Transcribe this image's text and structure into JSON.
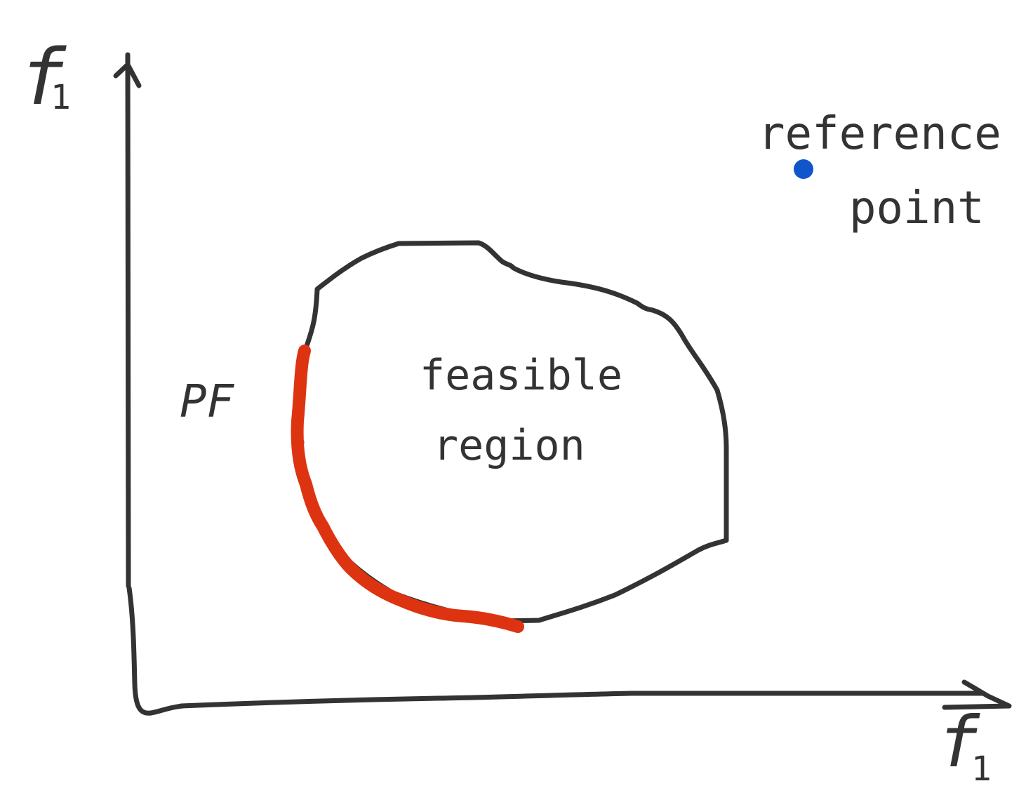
{
  "colors": {
    "ink": "#333333",
    "pareto_front": "#dd3311",
    "reference_point": "#1155cc",
    "background": "#ffffff"
  },
  "axes": {
    "y_label": "f",
    "y_label_subscript": "1",
    "x_label": "f",
    "x_label_subscript": "1"
  },
  "labels": {
    "pareto_front": "PF",
    "feasible_region_line1": "feasible",
    "feasible_region_line2": "region",
    "reference_point_line1": "reference",
    "reference_point_line2": "point"
  },
  "elements": [
    {
      "name": "y-axis",
      "kind": "arrow"
    },
    {
      "name": "x-axis",
      "kind": "arrow"
    },
    {
      "name": "feasible-region-boundary",
      "kind": "closed-curve"
    },
    {
      "name": "pareto-front-curve",
      "kind": "highlighted-curve"
    },
    {
      "name": "reference-point-marker",
      "kind": "dot"
    }
  ]
}
